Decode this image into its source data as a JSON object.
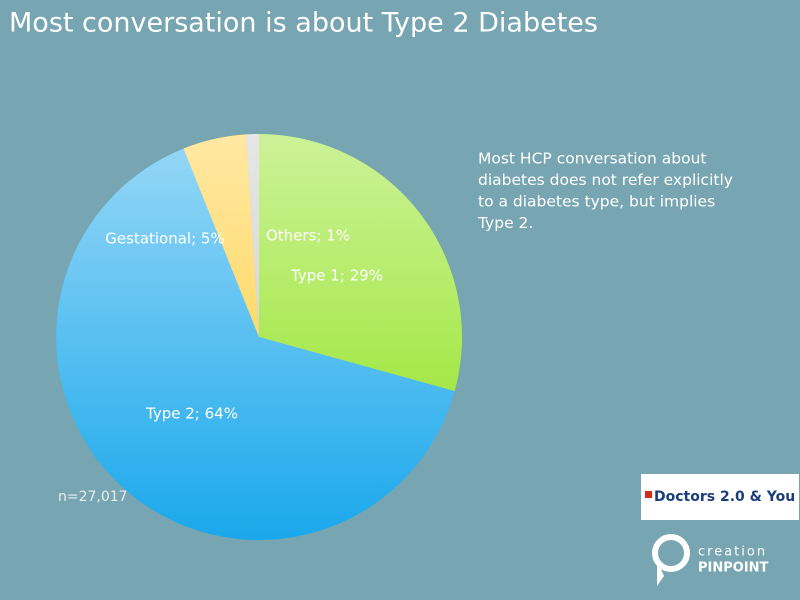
{
  "chart_data": {
    "type": "pie",
    "title": "Most conversation is about Type 2 Diabetes",
    "values": [
      29,
      64,
      5,
      1
    ],
    "value_labels": [
      "Type 1; 29%",
      "Type 2; 64%",
      "Gestational; 5%",
      "Others; 1%"
    ],
    "colors": [
      "#8ee21a",
      "#1aa8ec",
      "#ffcc33",
      "#c8c8c8"
    ],
    "note": [
      "Most HCP conversation about",
      "diabetes does not refer explicitly",
      "to a diabetes type, but implies",
      "Type 2."
    ],
    "sample_size": "n=27,017"
  },
  "logos": {
    "doctors": "Doctors 2.0 & You",
    "creation_top": "creation",
    "creation_bottom": "PINPOINT"
  }
}
